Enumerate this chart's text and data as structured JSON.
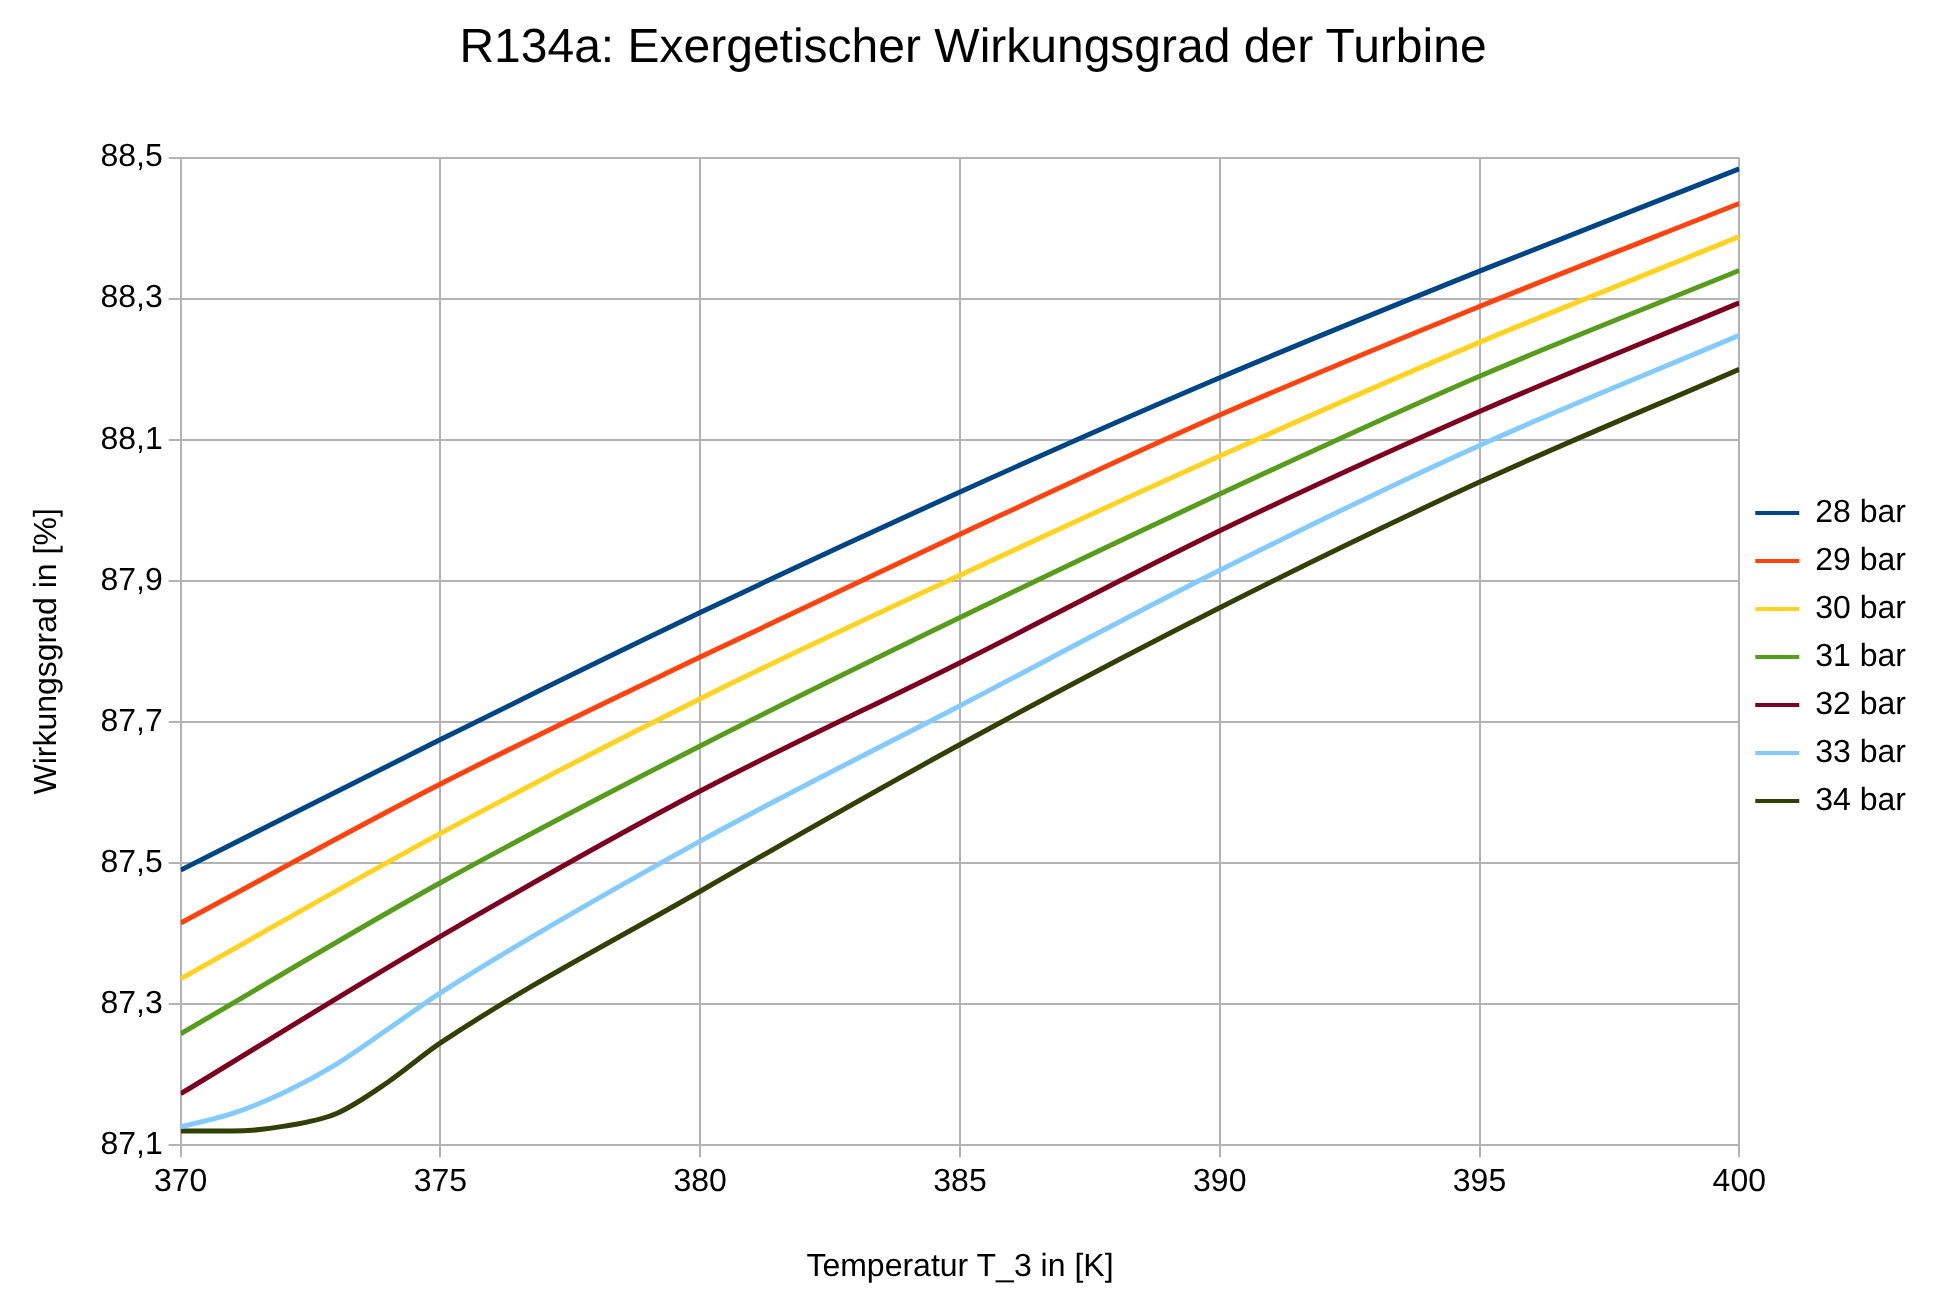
{
  "chart_data": {
    "type": "line",
    "title": "R134a: Exergetischer Wirkungsgrad der Turbine",
    "xlabel": "Temperatur T_3 in [K]",
    "ylabel": "Wirkungsgrad in [%]",
    "x": [
      370,
      375,
      380,
      385,
      390,
      395,
      400
    ],
    "series": [
      {
        "name": "28 bar",
        "color": "#004586",
        "values": [
          87.49,
          87.675,
          87.855,
          88.026,
          88.188,
          88.339,
          88.484
        ]
      },
      {
        "name": "29 bar",
        "color": "#ff420e",
        "values": [
          87.415,
          87.612,
          87.792,
          87.966,
          88.135,
          88.289,
          88.435
        ]
      },
      {
        "name": "30 bar",
        "color": "#ffd320",
        "values": [
          87.336,
          87.542,
          87.733,
          87.908,
          88.077,
          88.238,
          88.388
        ]
      },
      {
        "name": "31 bar",
        "color": "#579d1c",
        "values": [
          87.258,
          87.472,
          87.666,
          87.848,
          88.023,
          88.19,
          88.34
        ]
      },
      {
        "name": "32 bar",
        "color": "#7e0021",
        "values": [
          87.173,
          87.396,
          87.602,
          87.784,
          87.971,
          88.14,
          88.294
        ]
      },
      {
        "name": "33 bar",
        "color": "#83caff",
        "x": [
          370,
          371,
          372,
          373,
          374,
          375,
          380,
          385,
          390,
          395,
          400
        ],
        "values": [
          87.126,
          87.145,
          87.175,
          87.215,
          87.265,
          87.316,
          87.531,
          87.723,
          87.915,
          88.092,
          88.248
        ]
      },
      {
        "name": "34 bar",
        "color": "#314004",
        "x": [
          370,
          371,
          372,
          373,
          374,
          375,
          380,
          385,
          390,
          395,
          400
        ],
        "values": [
          87.12,
          87.12,
          87.127,
          87.145,
          87.19,
          87.245,
          87.46,
          87.668,
          87.862,
          88.04,
          88.2
        ]
      }
    ],
    "xlim": [
      370,
      400
    ],
    "xticks": [
      370,
      375,
      380,
      385,
      390,
      395,
      400
    ],
    "ylim": [
      87.1,
      88.5
    ],
    "yticks": [
      {
        "value": 87.1,
        "label": "87,1"
      },
      {
        "value": 87.3,
        "label": "87,3"
      },
      {
        "value": 87.5,
        "label": "87,5"
      },
      {
        "value": 87.7,
        "label": "87,7"
      },
      {
        "value": 87.9,
        "label": "87,9"
      },
      {
        "value": 88.1,
        "label": "88,1"
      },
      {
        "value": 88.3,
        "label": "88,3"
      },
      {
        "value": 88.5,
        "label": "88,5"
      }
    ],
    "grid": true,
    "legend": "right",
    "marker": "none",
    "line_style": "solid"
  }
}
